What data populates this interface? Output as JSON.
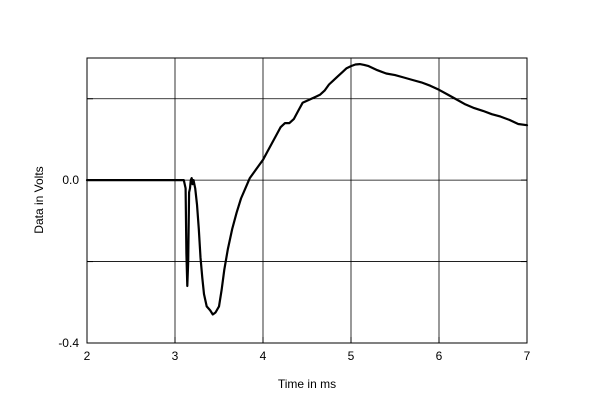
{
  "chart_data": {
    "type": "line",
    "xlabel": "Time in ms",
    "ylabel": "Data in Volts",
    "xlim": [
      2,
      7
    ],
    "ylim": [
      -0.4,
      0.3
    ],
    "x_ticks": [
      2,
      3,
      4,
      5,
      6,
      7
    ],
    "x_tick_labels": [
      "2",
      "3",
      "4",
      "5",
      "6",
      "7"
    ],
    "y_ticks": [
      -0.4,
      -0.2,
      0.0,
      0.2
    ],
    "y_tick_labels": [
      "-0.4",
      "",
      "0.0",
      ""
    ],
    "grid": true,
    "line_color": "#000000",
    "series": [
      {
        "x": [
          2.0,
          3.05,
          3.1,
          3.12,
          3.13,
          3.14,
          3.15,
          3.16,
          3.17,
          3.18,
          3.19,
          3.2,
          3.21,
          3.23,
          3.25,
          3.27,
          3.29,
          3.31,
          3.33,
          3.36,
          3.4,
          3.43,
          3.46,
          3.5,
          3.53,
          3.56,
          3.6,
          3.65,
          3.7,
          3.75,
          3.8,
          3.85,
          3.9,
          3.95,
          4.0,
          4.05,
          4.1,
          4.15,
          4.2,
          4.25,
          4.3,
          4.35,
          4.4,
          4.45,
          4.5,
          4.55,
          4.6,
          4.65,
          4.7,
          4.75,
          4.8,
          4.85,
          4.9,
          4.95,
          5.0,
          5.05,
          5.1,
          5.15,
          5.2,
          5.3,
          5.4,
          5.5,
          5.6,
          5.7,
          5.8,
          5.9,
          6.0,
          6.1,
          6.2,
          6.3,
          6.4,
          6.5,
          6.6,
          6.7,
          6.8,
          6.9,
          7.0
        ],
        "values": [
          0.0,
          0.0,
          0.0,
          -0.02,
          -0.18,
          -0.26,
          -0.2,
          -0.03,
          -0.02,
          0.0,
          0.005,
          -0.01,
          0.0,
          -0.02,
          -0.06,
          -0.12,
          -0.19,
          -0.24,
          -0.28,
          -0.31,
          -0.32,
          -0.33,
          -0.325,
          -0.31,
          -0.27,
          -0.22,
          -0.17,
          -0.12,
          -0.08,
          -0.045,
          -0.02,
          0.005,
          0.02,
          0.035,
          0.05,
          0.07,
          0.09,
          0.11,
          0.13,
          0.14,
          0.14,
          0.15,
          0.17,
          0.19,
          0.195,
          0.2,
          0.205,
          0.21,
          0.22,
          0.235,
          0.245,
          0.255,
          0.265,
          0.275,
          0.28,
          0.284,
          0.285,
          0.283,
          0.28,
          0.27,
          0.262,
          0.258,
          0.252,
          0.246,
          0.24,
          0.232,
          0.222,
          0.21,
          0.198,
          0.186,
          0.177,
          0.17,
          0.162,
          0.156,
          0.148,
          0.138,
          0.135
        ]
      }
    ]
  }
}
